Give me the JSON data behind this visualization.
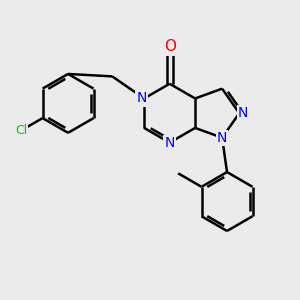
{
  "bg_color": "#ebebeb",
  "bond_color": "#000000",
  "n_color": "#0000ff",
  "o_color": "#ff0000",
  "cl_color": "#00cc00",
  "bond_width": 1.8,
  "dbo": 0.06,
  "figsize": [
    3.0,
    3.0
  ],
  "dpi": 100,
  "xlim": [
    -3.2,
    2.8
  ],
  "ylim": [
    -3.0,
    2.5
  ]
}
